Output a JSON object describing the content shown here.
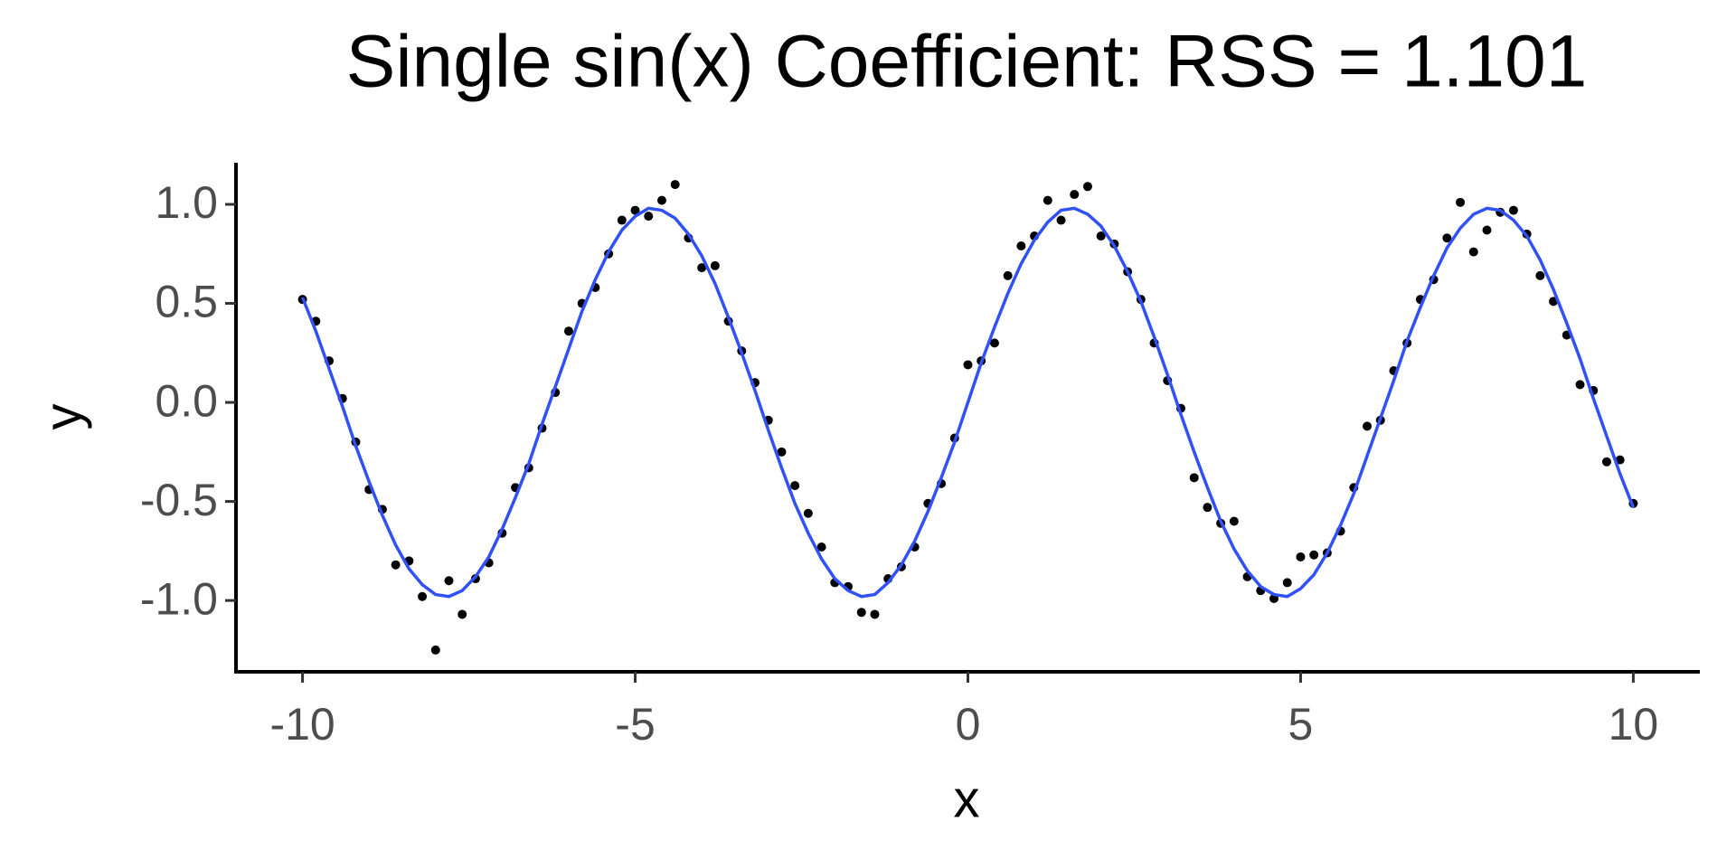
{
  "chart_data": {
    "type": "scatter",
    "title": "Single sin(x) Coefficient: RSS = 1.101",
    "x_label": "x",
    "y_label": "y",
    "x": [
      -10,
      -9.8,
      -9.6,
      -9.4,
      -9.2,
      -9,
      -8.8,
      -8.6,
      -8.4,
      -8.2,
      -8,
      -7.8,
      -7.6,
      -7.4,
      -7.2,
      -7,
      -6.8,
      -6.6,
      -6.4,
      -6.2,
      -6,
      -5.8,
      -5.6,
      -5.4,
      -5.2,
      -5,
      -4.8,
      -4.6,
      -4.4,
      -4.2,
      -4,
      -3.8,
      -3.6,
      -3.4,
      -3.2,
      -3,
      -2.8,
      -2.6,
      -2.4,
      -2.2,
      -2,
      -1.8,
      -1.6,
      -1.4,
      -1.2,
      -1,
      -0.8,
      -0.6,
      -0.4,
      -0.2,
      0,
      0.2,
      0.4,
      0.6,
      0.8,
      1,
      1.2,
      1.4,
      1.6,
      1.8,
      2,
      2.2,
      2.4,
      2.6,
      2.8,
      3,
      3.2,
      3.4,
      3.6,
      3.8,
      4,
      4.2,
      4.4,
      4.6,
      4.8,
      5,
      5.2,
      5.4,
      5.6,
      5.8,
      6,
      6.2,
      6.4,
      6.6,
      6.8,
      7,
      7.2,
      7.4,
      7.6,
      7.8,
      8,
      8.2,
      8.4,
      8.6,
      8.8,
      9,
      9.2,
      9.4,
      9.6,
      9.8,
      10
    ],
    "series": [
      {
        "type": "scatter",
        "color": "#000000",
        "values": [
          0.52,
          0.41,
          0.21,
          0.02,
          -0.2,
          -0.44,
          -0.54,
          -0.82,
          -0.8,
          -0.98,
          -1.25,
          -0.9,
          -1.07,
          -0.89,
          -0.81,
          -0.66,
          -0.43,
          -0.33,
          -0.13,
          0.05,
          0.36,
          0.5,
          0.58,
          0.75,
          0.92,
          0.97,
          0.94,
          1.02,
          1.1,
          0.83,
          0.68,
          0.69,
          0.41,
          0.26,
          0.1,
          -0.09,
          -0.25,
          -0.42,
          -0.56,
          -0.73,
          -0.91,
          -0.93,
          -1.06,
          -1.07,
          -0.89,
          -0.83,
          -0.73,
          -0.51,
          -0.41,
          -0.18,
          0.19,
          0.21,
          0.3,
          0.64,
          0.79,
          0.84,
          1.02,
          0.92,
          1.05,
          1.09,
          0.84,
          0.8,
          0.66,
          0.52,
          0.3,
          0.11,
          -0.03,
          -0.38,
          -0.53,
          -0.61,
          -0.6,
          -0.88,
          -0.95,
          -0.99,
          -0.91,
          -0.78,
          -0.77,
          -0.76,
          -0.65,
          -0.43,
          -0.12,
          -0.09,
          0.16,
          0.3,
          0.52,
          0.62,
          0.83,
          1.01,
          0.76,
          0.87,
          0.96,
          0.97,
          0.85,
          0.64,
          0.51,
          0.34,
          0.09,
          0.06,
          -0.3,
          -0.29,
          -0.51
        ]
      },
      {
        "type": "line",
        "color": "#3050f8",
        "values": [
          0.53,
          0.36,
          0.17,
          -0.02,
          -0.22,
          -0.4,
          -0.57,
          -0.72,
          -0.84,
          -0.92,
          -0.97,
          -0.98,
          -0.95,
          -0.88,
          -0.78,
          -0.64,
          -0.48,
          -0.31,
          -0.11,
          0.08,
          0.27,
          0.46,
          0.62,
          0.76,
          0.87,
          0.94,
          0.98,
          0.97,
          0.93,
          0.85,
          0.74,
          0.6,
          0.43,
          0.25,
          0.06,
          -0.14,
          -0.33,
          -0.51,
          -0.66,
          -0.79,
          -0.89,
          -0.95,
          -0.98,
          -0.97,
          -0.91,
          -0.82,
          -0.7,
          -0.55,
          -0.38,
          -0.2,
          0,
          0.2,
          0.38,
          0.55,
          0.7,
          0.82,
          0.91,
          0.97,
          0.98,
          0.95,
          0.89,
          0.79,
          0.66,
          0.51,
          0.33,
          0.14,
          -0.06,
          -0.25,
          -0.43,
          -0.6,
          -0.74,
          -0.85,
          -0.93,
          -0.97,
          -0.98,
          -0.94,
          -0.87,
          -0.76,
          -0.62,
          -0.46,
          -0.27,
          -0.08,
          0.11,
          0.31,
          0.48,
          0.64,
          0.78,
          0.88,
          0.95,
          0.98,
          0.97,
          0.92,
          0.84,
          0.72,
          0.57,
          0.4,
          0.22,
          0.02,
          -0.17,
          -0.36,
          -0.53
        ]
      }
    ],
    "xlim": [
      -11,
      11
    ],
    "ylim": [
      -1.36,
      1.21
    ],
    "xticks": [
      -10,
      -5,
      0,
      5,
      10
    ],
    "yticks": [
      {
        "value": -1,
        "label": "-1.0"
      },
      -0.5,
      {
        "value": 0,
        "label": "0.0"
      },
      0.5,
      {
        "value": 1,
        "label": "1.0"
      }
    ],
    "grid": false
  }
}
